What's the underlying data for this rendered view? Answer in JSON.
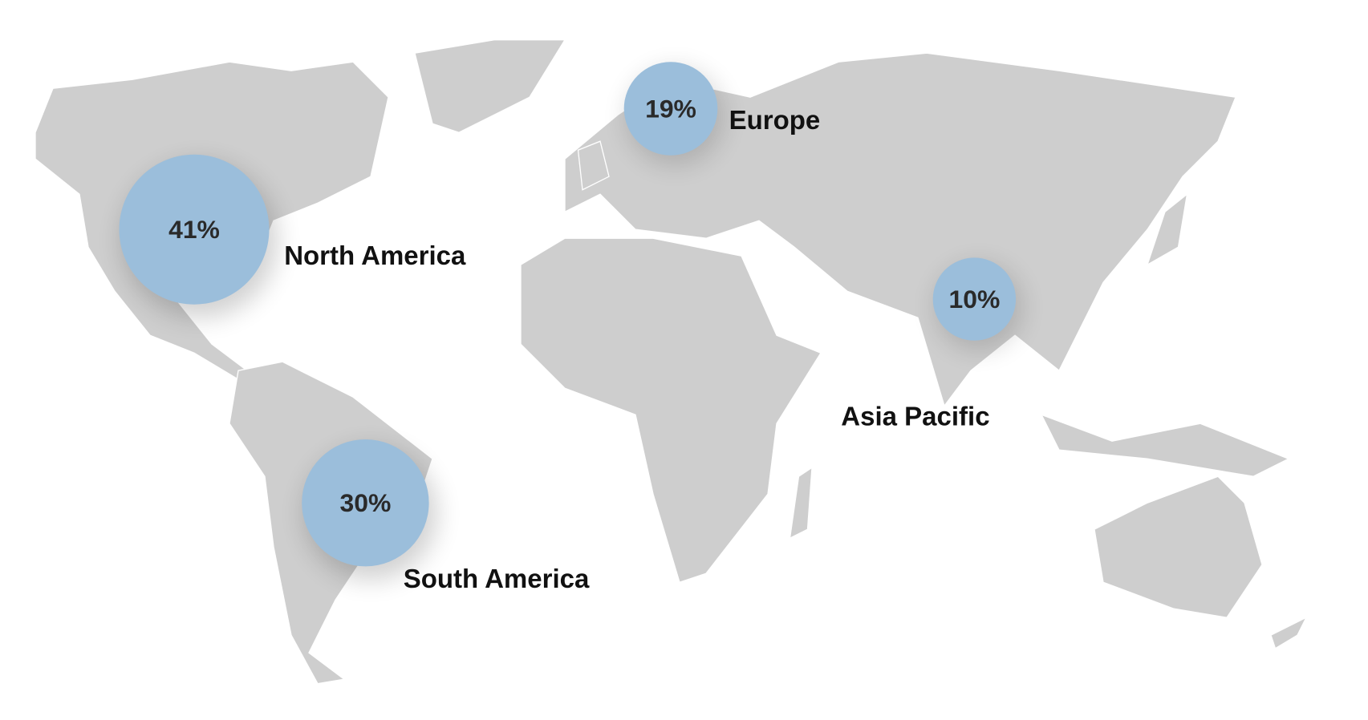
{
  "map": {
    "land_color": "#cecece",
    "bubble_color": "#9bbedb",
    "regions": [
      {
        "name": "North America",
        "value": "41%"
      },
      {
        "name": "South America",
        "value": "30%"
      },
      {
        "name": "Europe",
        "value": "19%"
      },
      {
        "name": "Asia Pacific",
        "value": "10%"
      }
    ]
  }
}
